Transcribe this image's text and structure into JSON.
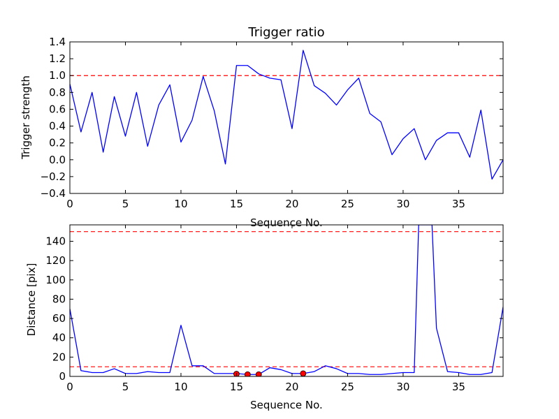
{
  "chart_data": [
    {
      "type": "line",
      "title": "Trigger ratio",
      "xlabel": "Sequence No.",
      "ylabel": "Trigger strength",
      "xlim": [
        0,
        39
      ],
      "ylim": [
        -0.4,
        1.4
      ],
      "xticks": [
        0,
        5,
        10,
        15,
        20,
        25,
        30,
        35
      ],
      "xtick_labels": [
        "0",
        "5",
        "10",
        "15",
        "20",
        "25",
        "30",
        "35"
      ],
      "yticks": [
        -0.4,
        -0.2,
        0.0,
        0.2,
        0.4,
        0.6,
        0.8,
        1.0,
        1.2,
        1.4
      ],
      "ytick_labels": [
        "−0.4",
        "−0.2",
        "0.0",
        "0.2",
        "0.4",
        "0.6",
        "0.8",
        "1.0",
        "1.2",
        "1.4"
      ],
      "series": [
        {
          "name": "trigger strength",
          "color": "#0000ff",
          "x": [
            0,
            1,
            2,
            3,
            4,
            5,
            6,
            7,
            8,
            9,
            10,
            11,
            12,
            13,
            14,
            15,
            16,
            17,
            18,
            19,
            20,
            21,
            22,
            23,
            24,
            25,
            26,
            27,
            28,
            29,
            30,
            31,
            32,
            33,
            34,
            35,
            36,
            37,
            38,
            39
          ],
          "y": [
            0.9,
            0.33,
            0.8,
            0.09,
            0.75,
            0.28,
            0.8,
            0.16,
            0.65,
            0.89,
            0.21,
            0.47,
            0.99,
            0.58,
            -0.05,
            1.12,
            1.12,
            1.02,
            0.97,
            0.95,
            0.37,
            1.3,
            0.88,
            0.79,
            0.65,
            0.83,
            0.97,
            0.55,
            0.45,
            0.06,
            0.25,
            0.37,
            0.0,
            0.23,
            0.32,
            0.32,
            0.03,
            0.59,
            -0.23,
            0.0
          ]
        }
      ],
      "hlines": [
        {
          "y": 1.0,
          "color": "#ff0000",
          "style": "dashed"
        }
      ]
    },
    {
      "type": "line",
      "title": "",
      "xlabel": "Sequence No.",
      "ylabel": "Distance [pix]",
      "xlim": [
        0,
        39
      ],
      "ylim": [
        0,
        157
      ],
      "xticks": [
        0,
        5,
        10,
        15,
        20,
        25,
        30,
        35
      ],
      "xtick_labels": [
        "0",
        "5",
        "10",
        "15",
        "20",
        "25",
        "30",
        "35"
      ],
      "yticks": [
        0,
        20,
        40,
        60,
        80,
        100,
        120,
        140
      ],
      "ytick_labels": [
        "0",
        "20",
        "40",
        "60",
        "80",
        "100",
        "120",
        "140"
      ],
      "series": [
        {
          "name": "distance",
          "color": "#0000ff",
          "x": [
            0,
            1,
            2,
            3,
            4,
            5,
            6,
            7,
            8,
            9,
            10,
            11,
            12,
            13,
            14,
            15,
            16,
            17,
            18,
            19,
            20,
            21,
            22,
            23,
            24,
            25,
            26,
            27,
            28,
            29,
            30,
            31,
            31.4,
            32.6,
            33,
            34,
            35,
            36,
            37,
            38,
            39
          ],
          "y": [
            70,
            6,
            4,
            4,
            8,
            3,
            3,
            5,
            4,
            4,
            53,
            11,
            11,
            3,
            3,
            3,
            2,
            2,
            9,
            7,
            3,
            3,
            5,
            11,
            8,
            3,
            3,
            2,
            2,
            3,
            4,
            4,
            157,
            157,
            50,
            5,
            4,
            2,
            2,
            4,
            72
          ]
        }
      ],
      "markers": {
        "color": "#ff0000",
        "x": [
          15,
          16,
          17,
          21
        ],
        "y": [
          2.5,
          2.0,
          2.0,
          3.0
        ]
      },
      "hlines": [
        {
          "y": 150,
          "color": "#ff0000",
          "style": "dashed"
        },
        {
          "y": 10,
          "color": "#ff0000",
          "style": "dashed"
        }
      ]
    }
  ]
}
